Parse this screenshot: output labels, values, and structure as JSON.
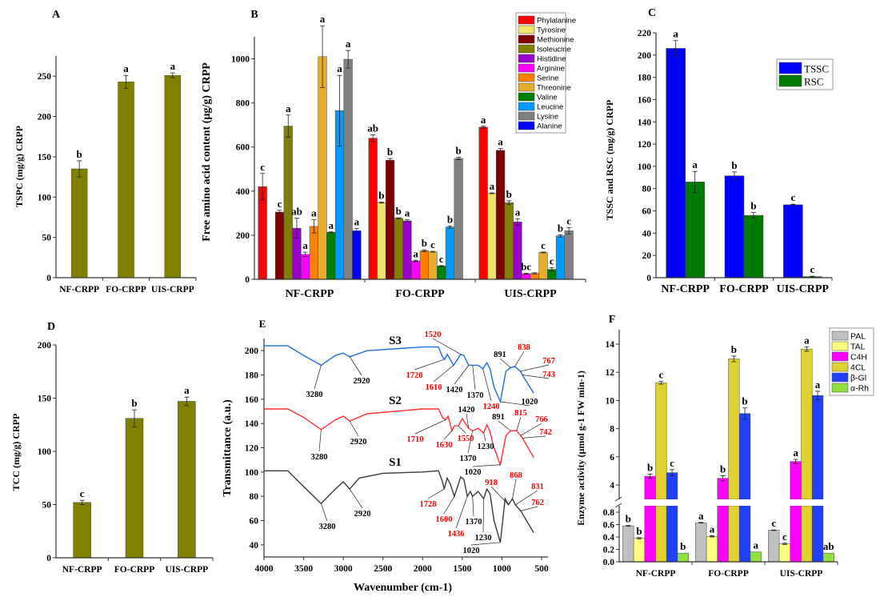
{
  "chart_data": [
    {
      "panel": "A",
      "type": "bar",
      "categories": [
        "NF-CRPP",
        "FO-CRPP",
        "UIS-CRPP"
      ],
      "ylabel": "TSPC  (mg/g) CRPP",
      "ylim": [
        0,
        275
      ],
      "yticks": [
        "0",
        "50",
        "100",
        "150",
        "200",
        "250"
      ],
      "series": [
        {
          "color": "#808000",
          "values": [
            135,
            243,
            251
          ],
          "errors": [
            10,
            8,
            3
          ],
          "letters": [
            "b",
            "a",
            "a"
          ]
        }
      ]
    },
    {
      "panel": "B",
      "type": "bar",
      "categories": [
        "NF-CRPP",
        "FO-CRPP",
        "UIS-CRPP"
      ],
      "ylabel": "Free amino acid content (µg/g) CRPP",
      "ylim": [
        0,
        1100
      ],
      "yticks": [
        "0",
        "200",
        "400",
        "600",
        "800",
        "1000"
      ],
      "legend_position": "top-right",
      "series": [
        {
          "name": "Phylalanine",
          "color": "#ff0000",
          "values": [
            420,
            640,
            690
          ],
          "errors": [
            60,
            15,
            4
          ],
          "letters": [
            "c",
            "ab",
            "a"
          ]
        },
        {
          "name": "Tyrosine",
          "color": "#eee46a",
          "values": [
            null,
            348,
            390
          ],
          "errors": [
            0,
            2,
            2
          ],
          "letters": [
            "",
            "b",
            "a"
          ]
        },
        {
          "name": "Methionine",
          "color": "#800000",
          "values": [
            305,
            540,
            585
          ],
          "errors": [
            8,
            8,
            8
          ],
          "letters": [
            "c",
            "b",
            "a"
          ]
        },
        {
          "name": "Isoleucine",
          "color": "#808000",
          "values": [
            695,
            277,
            348
          ],
          "errors": [
            50,
            2,
            8
          ],
          "letters": [
            "a",
            "b",
            "b"
          ]
        },
        {
          "name": "Histidine",
          "color": "#9900cc",
          "values": [
            232,
            265,
            260
          ],
          "errors": [
            45,
            5,
            15
          ],
          "letters": [
            "ab",
            "a",
            "a"
          ]
        },
        {
          "name": "Arginine",
          "color": "#ff00ff",
          "values": [
            113,
            83,
            25
          ],
          "errors": [
            10,
            3,
            2
          ],
          "letters": [
            "a",
            "a",
            "bc"
          ]
        },
        {
          "name": "Serine",
          "color": "#ff8000",
          "values": [
            240,
            130,
            27
          ],
          "errors": [
            30,
            4,
            3
          ],
          "letters": [
            "a",
            "b",
            ""
          ]
        },
        {
          "name": "Threonine",
          "color": "#e6ac2e",
          "values": [
            1010,
            125,
            122
          ],
          "errors": [
            140,
            2,
            2
          ],
          "letters": [
            "a",
            "c",
            "c"
          ]
        },
        {
          "name": "Valine",
          "color": "#008000",
          "values": [
            213,
            60,
            45
          ],
          "errors": [
            2,
            2,
            8
          ],
          "letters": [
            "a",
            "c",
            "c"
          ]
        },
        {
          "name": "Leucine",
          "color": "#0099ff",
          "values": [
            765,
            237,
            197
          ],
          "errors": [
            160,
            5,
            5
          ],
          "letters": [
            "a",
            "b",
            "b"
          ]
        },
        {
          "name": "Lysine",
          "color": "#808080",
          "values": [
            998,
            548,
            220
          ],
          "errors": [
            40,
            5,
            15
          ],
          "letters": [
            "a",
            "b",
            "c"
          ]
        },
        {
          "name": "Alanine",
          "color": "#0000ff",
          "values": [
            220,
            null,
            null
          ],
          "errors": [
            10,
            0,
            0
          ],
          "letters": [
            "a",
            "",
            ""
          ]
        }
      ]
    },
    {
      "panel": "C",
      "type": "bar",
      "categories": [
        "NF-CRPP",
        "FO-CRPP",
        "UIS-CRPP"
      ],
      "ylabel": "TSSC and RSC (mg/g) CRPP",
      "ylim": [
        0,
        220
      ],
      "yticks": [
        "0",
        "20",
        "40",
        "60",
        "80",
        "100",
        "120",
        "140",
        "160",
        "180",
        "200",
        "220"
      ],
      "legend_position": "top-right",
      "series": [
        {
          "name": "TSSC",
          "color": "#0000ff",
          "values": [
            206,
            91.5,
            65.5
          ],
          "errors": [
            7,
            3.5,
            0.5
          ],
          "letters": [
            "a",
            "b",
            "c"
          ]
        },
        {
          "name": "RSC",
          "color": "#007a00",
          "values": [
            86,
            56,
            1
          ],
          "errors": [
            9.5,
            2.5,
            0.3
          ],
          "letters": [
            "a",
            "b",
            "c"
          ]
        }
      ]
    },
    {
      "panel": "D",
      "type": "bar",
      "categories": [
        "NF-CRPP",
        "FO-CRPP",
        "UIS-CRPP"
      ],
      "ylabel": "TCC (mg/g) CRPP",
      "ylim": [
        0,
        200
      ],
      "yticks": [
        "0",
        "50",
        "100",
        "150",
        "200"
      ],
      "series": [
        {
          "color": "#808000",
          "values": [
            52,
            131,
            147
          ],
          "errors": [
            2,
            8,
            4
          ],
          "letters": [
            "c",
            "b",
            "a"
          ]
        }
      ]
    },
    {
      "panel": "E",
      "type": "line",
      "xlabel": "Wavenumber (cm-1)",
      "ylabel": "Transmittance (a.u.)",
      "xlim": [
        4000,
        500
      ],
      "ylim": [
        30,
        210
      ],
      "xticks": [
        "4000",
        "3500",
        "3000",
        "2500",
        "2000",
        "1500",
        "1000",
        "500"
      ],
      "yticks": [
        "40",
        "60",
        "80",
        "100",
        "120",
        "140",
        "160",
        "180",
        "200"
      ],
      "series": [
        {
          "name": "S1",
          "color": "#3a3a3a",
          "points": [
            [
              4000,
              101
            ],
            [
              3700,
              101
            ],
            [
              3500,
              88
            ],
            [
              3280,
              74
            ],
            [
              3100,
              86
            ],
            [
              3000,
              92
            ],
            [
              2920,
              86
            ],
            [
              2800,
              95
            ],
            [
              2500,
              99
            ],
            [
              2000,
              100
            ],
            [
              1800,
              101
            ],
            [
              1750,
              92
            ],
            [
              1728,
              86
            ],
            [
              1690,
              95
            ],
            [
              1650,
              90
            ],
            [
              1600,
              80
            ],
            [
              1520,
              96
            ],
            [
              1480,
              94
            ],
            [
              1436,
              80
            ],
            [
              1400,
              84
            ],
            [
              1370,
              80
            ],
            [
              1300,
              84
            ],
            [
              1230,
              78
            ],
            [
              1190,
              86
            ],
            [
              1150,
              82
            ],
            [
              1100,
              60
            ],
            [
              1020,
              42
            ],
            [
              960,
              78
            ],
            [
              918,
              73
            ],
            [
              868,
              78
            ],
            [
              831,
              73
            ],
            [
              762,
              68
            ],
            [
              600,
              50
            ]
          ],
          "peaks": [
            {
              "w": "3280",
              "c": "#000000"
            },
            {
              "w": "2920",
              "c": "#000000"
            },
            {
              "w": "1728",
              "c": "#ff0000"
            },
            {
              "w": "1600",
              "c": "#ff0000"
            },
            {
              "w": "1436",
              "c": "#ff0000"
            },
            {
              "w": "1370",
              "c": "#000000"
            },
            {
              "w": "1230",
              "c": "#000000"
            },
            {
              "w": "1020",
              "c": "#000000"
            },
            {
              "w": "918",
              "c": "#ff0000"
            },
            {
              "w": "868",
              "c": "#ff0000"
            },
            {
              "w": "831",
              "c": "#ff0000"
            },
            {
              "w": "762",
              "c": "#ff0000"
            }
          ]
        },
        {
          "name": "S2",
          "color": "#ff3030",
          "points": [
            [
              4000,
              152
            ],
            [
              3700,
              152
            ],
            [
              3500,
              145
            ],
            [
              3280,
              135
            ],
            [
              3100,
              143
            ],
            [
              3000,
              146
            ],
            [
              2920,
              142
            ],
            [
              2700,
              148
            ],
            [
              2000,
              152
            ],
            [
              1800,
              152
            ],
            [
              1750,
              145
            ],
            [
              1710,
              143
            ],
            [
              1680,
              146
            ],
            [
              1630,
              134
            ],
            [
              1600,
              138
            ],
            [
              1550,
              138
            ],
            [
              1500,
              144
            ],
            [
              1420,
              136
            ],
            [
              1370,
              134
            ],
            [
              1300,
              136
            ],
            [
              1230,
              132
            ],
            [
              1190,
              139
            ],
            [
              1150,
              133
            ],
            [
              1100,
              120
            ],
            [
              1020,
              106
            ],
            [
              950,
              130
            ],
            [
              891,
              134
            ],
            [
              815,
              134
            ],
            [
              766,
              130
            ],
            [
              742,
              128
            ],
            [
              600,
              112
            ]
          ],
          "peaks": [
            {
              "w": "3280",
              "c": "#000000"
            },
            {
              "w": "2920",
              "c": "#000000"
            },
            {
              "w": "1710",
              "c": "#ff0000"
            },
            {
              "w": "1630",
              "c": "#ff0000"
            },
            {
              "w": "1550",
              "c": "#ff0000"
            },
            {
              "w": "1420",
              "c": "#000000"
            },
            {
              "w": "1370",
              "c": "#000000"
            },
            {
              "w": "1230",
              "c": "#000000"
            },
            {
              "w": "1020",
              "c": "#000000"
            },
            {
              "w": "891",
              "c": "#000000"
            },
            {
              "w": "815",
              "c": "#ff0000"
            },
            {
              "w": "766",
              "c": "#ff0000"
            },
            {
              "w": "742",
              "c": "#ff0000"
            }
          ]
        },
        {
          "name": "S3",
          "color": "#1e6fd9",
          "points": [
            [
              4000,
              204
            ],
            [
              3700,
              204
            ],
            [
              3500,
              196
            ],
            [
              3280,
              188
            ],
            [
              3100,
              196
            ],
            [
              3000,
              198
            ],
            [
              2920,
              195
            ],
            [
              2700,
              200
            ],
            [
              2000,
              203
            ],
            [
              1800,
              203
            ],
            [
              1750,
              195
            ],
            [
              1720,
              193
            ],
            [
              1690,
              197
            ],
            [
              1610,
              188
            ],
            [
              1520,
              197
            ],
            [
              1480,
              196
            ],
            [
              1420,
              188
            ],
            [
              1370,
              188
            ],
            [
              1300,
              188
            ],
            [
              1240,
              185
            ],
            [
              1190,
              190
            ],
            [
              1150,
              185
            ],
            [
              1100,
              170
            ],
            [
              1020,
              158
            ],
            [
              950,
              183
            ],
            [
              891,
              186
            ],
            [
              838,
              187
            ],
            [
              767,
              183
            ],
            [
              743,
              180
            ],
            [
              600,
              165
            ]
          ],
          "peaks": [
            {
              "w": "3280",
              "c": "#000000"
            },
            {
              "w": "2920",
              "c": "#000000"
            },
            {
              "w": "1720",
              "c": "#ff0000"
            },
            {
              "w": "1610",
              "c": "#ff0000"
            },
            {
              "w": "1520",
              "c": "#ff0000"
            },
            {
              "w": "1420",
              "c": "#000000"
            },
            {
              "w": "1370",
              "c": "#000000"
            },
            {
              "w": "1240",
              "c": "#ff0000"
            },
            {
              "w": "1020",
              "c": "#000000"
            },
            {
              "w": "891",
              "c": "#000000"
            },
            {
              "w": "838",
              "c": "#ff0000"
            },
            {
              "w": "767",
              "c": "#ff0000"
            },
            {
              "w": "743",
              "c": "#ff0000"
            }
          ]
        }
      ]
    },
    {
      "panel": "F",
      "type": "bar",
      "categories": [
        "NF-CRPP",
        "FO-CRPP",
        "UIS-CRPP"
      ],
      "ylabel": "Enzyme activity (µmol g-1 FW min-1)",
      "y_axis_break": [
        0.9,
        3
      ],
      "ylim": [
        0,
        15
      ],
      "yticks_lower": [
        "0.0",
        "0.2",
        "0.4",
        "0.6",
        "0.8"
      ],
      "yticks_upper": [
        "4",
        "6",
        "8",
        "10",
        "12",
        "14"
      ],
      "legend_position": "top-right",
      "series": [
        {
          "name": "PAL",
          "color": "#c0c0c0",
          "values": [
            0.58,
            0.63,
            0.51
          ],
          "errors": [
            0.005,
            0.005,
            0.005
          ],
          "letters": [
            "b",
            "a",
            "c"
          ]
        },
        {
          "name": "TAL",
          "color": "#ffff80",
          "values": [
            0.38,
            0.41,
            0.29
          ],
          "errors": [
            0.01,
            0.01,
            0.01
          ],
          "letters": [
            "b",
            "a",
            "c"
          ]
        },
        {
          "name": "C4H",
          "color": "#ff00ff",
          "values": [
            4.62,
            4.47,
            5.67
          ],
          "errors": [
            0.15,
            0.18,
            0.15
          ],
          "letters": [
            "b",
            "b",
            "a"
          ]
        },
        {
          "name": "4CL",
          "color": "#e0d030",
          "values": [
            11.25,
            12.95,
            13.65
          ],
          "errors": [
            0.1,
            0.2,
            0.15
          ],
          "letters": [
            "c",
            "b",
            "a"
          ]
        },
        {
          "name": "β-Gl",
          "color": "#2040ff",
          "values": [
            4.87,
            9.07,
            10.35
          ],
          "errors": [
            0.22,
            0.4,
            0.3
          ],
          "letters": [
            "c",
            "b",
            "a"
          ]
        },
        {
          "name": "α-Rh",
          "color": "#90e040",
          "values": [
            0.14,
            0.16,
            0.14
          ],
          "errors": [
            0,
            0,
            0
          ],
          "letters": [
            "b",
            "a",
            "ab"
          ]
        }
      ]
    }
  ]
}
